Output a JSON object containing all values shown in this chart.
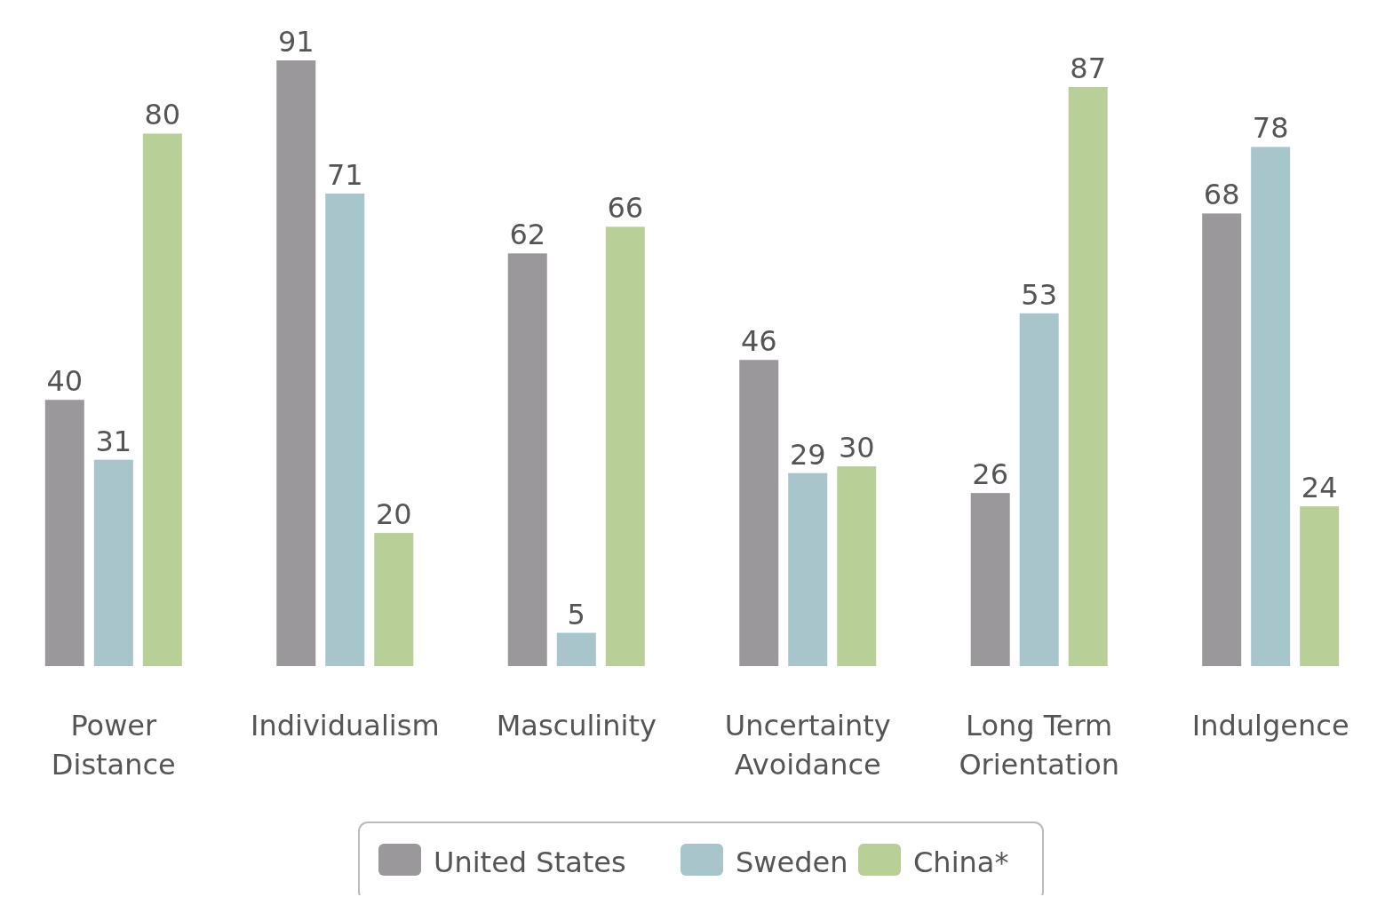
{
  "chart_data": {
    "type": "bar",
    "categories": [
      "Power Distance",
      "Individualism",
      "Masculinity",
      "Uncertainty Avoidance",
      "Long Term Orientation",
      "Indulgence"
    ],
    "series": [
      {
        "name": "United States",
        "color": "#9a989b",
        "values": [
          40,
          91,
          62,
          46,
          26,
          68
        ]
      },
      {
        "name": "Sweden",
        "color": "#a9c5cc",
        "values": [
          31,
          71,
          5,
          29,
          53,
          78
        ]
      },
      {
        "name": "China*",
        "color": "#b9cf98",
        "values": [
          80,
          20,
          66,
          30,
          87,
          24
        ]
      }
    ],
    "data_labels": true,
    "legend": "bottom",
    "relative": false
  }
}
